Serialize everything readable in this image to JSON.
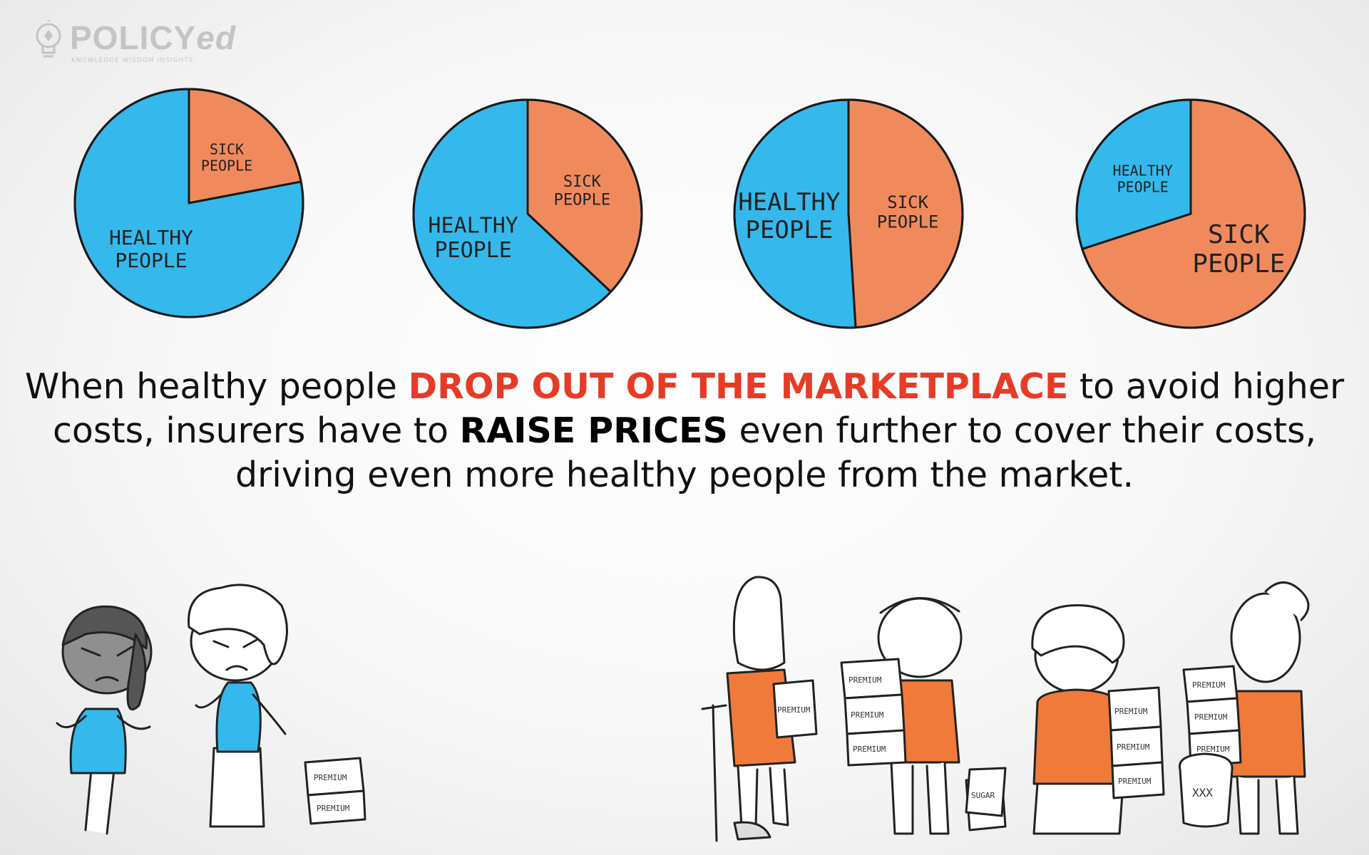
{
  "logo": {
    "brand_main": "POLICY",
    "brand_suffix": "ed",
    "tagline": "KNOWLEDGE WISDOM INSIGHTS"
  },
  "chart_data": [
    {
      "type": "pie",
      "slices": [
        {
          "name": "SICK PEOPLE",
          "value": 22,
          "color": "#f08a5d"
        },
        {
          "name": "HEALTHY PEOPLE",
          "value": 78,
          "color": "#35b9ec"
        }
      ]
    },
    {
      "type": "pie",
      "slices": [
        {
          "name": "SICK PEOPLE",
          "value": 37,
          "color": "#f08a5d"
        },
        {
          "name": "HEALTHY PEOPLE",
          "value": 63,
          "color": "#35b9ec"
        }
      ]
    },
    {
      "type": "pie",
      "slices": [
        {
          "name": "SICK PEOPLE",
          "value": 49,
          "color": "#f08a5d"
        },
        {
          "name": "HEALTHY PEOPLE",
          "value": 51,
          "color": "#35b9ec"
        }
      ]
    },
    {
      "type": "pie",
      "slices": [
        {
          "name": "SICK PEOPLE",
          "value": 70,
          "color": "#f08a5d"
        },
        {
          "name": "HEALTHY PEOPLE",
          "value": 30,
          "color": "#35b9ec"
        }
      ]
    }
  ],
  "headline": {
    "part1": "When healthy people ",
    "highlight1": "DROP OUT OF THE MARKETPLACE",
    "part2": " to avoid higher costs, insurers have to ",
    "highlight2": "RAISE PRICES",
    "part3": " even further to cover their costs, driving even more healthy people from the market."
  },
  "scene": {
    "box_label": "PREMIUM",
    "box_label_mirrored": "PREMIUM",
    "bag_label": "SUGAR",
    "jar_label": "XXX"
  },
  "colors": {
    "healthy": "#35b9ec",
    "sick": "#f08a5d",
    "accent_red": "#e63b26",
    "shirt_orange": "#f07a3a",
    "shirt_blue": "#35b9ec"
  }
}
